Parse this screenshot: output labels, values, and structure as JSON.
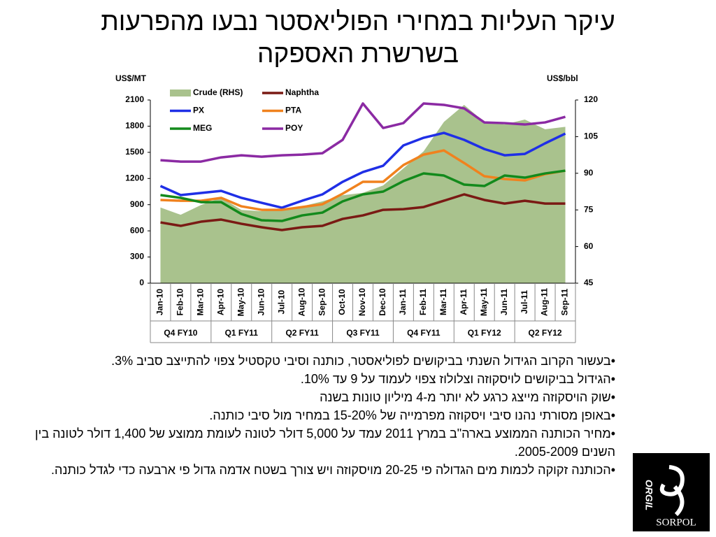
{
  "title_lines": [
    "עיקר העליות במחירי הפוליאסטר נבעו מהפרעות",
    "בשרשרת האספקה"
  ],
  "chart_data": {
    "type": "line",
    "ylabel": "US$/MT",
    "y2label": "US$/bbl",
    "categories": [
      "Jan-10",
      "Feb-10",
      "Mar-10",
      "Apr-10",
      "May-10",
      "Jun-10",
      "Jul-10",
      "Aug-10",
      "Sep-10",
      "Oct-10",
      "Nov-10",
      "Dec-10",
      "Jan-11",
      "Feb-11",
      "Mar-11",
      "Apr-11",
      "May-11",
      "Jun-11",
      "Jul-11",
      "Aug-11",
      "Sep-11"
    ],
    "quarters": [
      "Q4 FY10",
      "Q1 FY11",
      "Q2 FY11",
      "Q3 FY11",
      "Q4 FY11",
      "Q1 FY12",
      "Q2 FY12"
    ],
    "ylim": [
      0,
      2100
    ],
    "yticks": [
      0,
      300,
      600,
      900,
      1200,
      1500,
      1800,
      2100
    ],
    "y2lim": [
      45,
      120
    ],
    "y2ticks": [
      45,
      60,
      75,
      90,
      105,
      120
    ],
    "series": [
      {
        "name": "Crude (RHS)",
        "kind": "area",
        "axis": "y2",
        "color": "#a9c28d",
        "values": [
          76,
          73,
          77,
          80,
          75,
          74.5,
          75,
          76.5,
          78.5,
          81,
          82,
          85,
          92,
          99,
          111,
          118,
          111,
          110,
          112,
          108,
          109
        ]
      },
      {
        "name": "Naphtha",
        "color": "#7a1a14",
        "values": [
          697,
          657,
          705,
          729,
          681,
          641,
          609,
          641,
          657,
          737,
          777,
          841,
          849,
          873,
          945,
          1018,
          954,
          913,
          945,
          913,
          913
        ]
      },
      {
        "name": "PX",
        "color": "#1f2fe6",
        "values": [
          1114,
          1010,
          1034,
          1058,
          978,
          921,
          865,
          945,
          1018,
          1162,
          1274,
          1346,
          1579,
          1667,
          1723,
          1643,
          1538,
          1466,
          1482,
          1603,
          1715
        ]
      },
      {
        "name": "PTA",
        "color": "#f0821e",
        "values": [
          954,
          945,
          945,
          978,
          881,
          841,
          841,
          873,
          905,
          1026,
          1162,
          1162,
          1354,
          1474,
          1522,
          1378,
          1226,
          1194,
          1178,
          1250,
          1290
        ]
      },
      {
        "name": "MEG",
        "color": "#138a1c",
        "values": [
          1010,
          978,
          929,
          929,
          793,
          721,
          713,
          777,
          809,
          938,
          1018,
          1050,
          1170,
          1258,
          1234,
          1130,
          1114,
          1234,
          1210,
          1258,
          1290
        ]
      },
      {
        "name": "POY",
        "color": "#8b2aa3",
        "values": [
          1410,
          1394,
          1394,
          1442,
          1466,
          1450,
          1466,
          1474,
          1490,
          1643,
          2060,
          1779,
          1835,
          2060,
          2044,
          2004,
          1843,
          1835,
          1819,
          1843,
          1907
        ]
      }
    ]
  },
  "bullets": [
    "בעשור הקרוב הגידול השנתי בביקושים לפוליאסטר, כותנה וסיבי טקסטיל צפוי להתייצב סביב 3%.",
    "הגידול בביקושים לויסקוזה וצלולוז צפוי לעמוד על 9 עד 10%.",
    "שוק הויסקוזה מייצג כרגע לא יותר מ-4 מיליון טונות בשנה",
    "באופן מסורתי נהנו סיבי ויסקוזה מפרמייה של 15-20% במחיר מול סיבי כותנה.",
    "מחיר הכותנה הממוצע בארה\"ב במרץ 2011 עמד על 5,000 דולר לטונה לעומת ממוצע של 1,400 דולר לטונה בין השנים 2005-2009.",
    "הכותנה זקוקה לכמות מים הגדולה פי 20-25 מויסקוזה ויש צורך בשטח אדמה גדול פי ארבעה כדי לגדל כותנה."
  ],
  "logo": {
    "name": "SORPOL",
    "side": "ORGIL"
  }
}
